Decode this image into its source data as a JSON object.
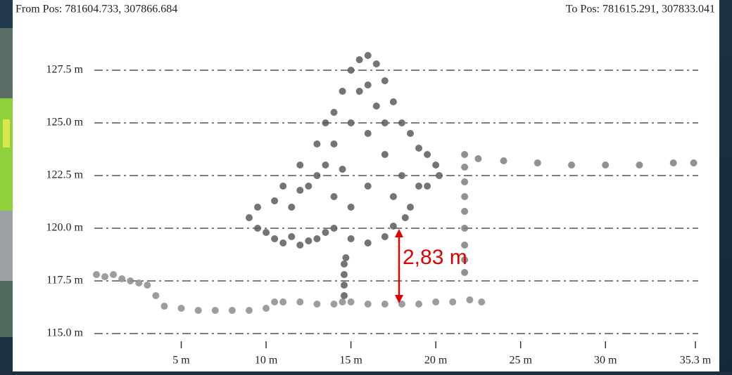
{
  "chart_data": {
    "type": "scatter",
    "from_pos": "From Pos: 781604.733, 307866.684",
    "to_pos": "To Pos: 781615.291, 307833.041",
    "annotation": "2,83 m",
    "xlim": [
      0,
      35.3
    ],
    "ylim": [
      114.1,
      128.5
    ],
    "xticks": [
      {
        "value": 5,
        "label": "5 m"
      },
      {
        "value": 10,
        "label": "10 m"
      },
      {
        "value": 15,
        "label": "15 m"
      },
      {
        "value": 20,
        "label": "20 m"
      },
      {
        "value": 25,
        "label": "25 m"
      },
      {
        "value": 30,
        "label": "30 m"
      },
      {
        "value": 35.3,
        "label": "35.3 m"
      }
    ],
    "yticks": [
      {
        "value": 115.0,
        "label": "115.0 m"
      },
      {
        "value": 117.5,
        "label": "117.5 m"
      },
      {
        "value": 120.0,
        "label": "120.0 m"
      },
      {
        "value": 122.5,
        "label": "122.5 m"
      },
      {
        "value": 125.0,
        "label": "125.0 m"
      },
      {
        "value": 127.5,
        "label": "127.5 m"
      }
    ],
    "grid": true,
    "series": [
      {
        "color": "#8c8c8c",
        "x": [
          0,
          0.5,
          1,
          1.5,
          2,
          2.5,
          3,
          3.5,
          4,
          5,
          6,
          7,
          8,
          9,
          10,
          10.5,
          11,
          12,
          13,
          14,
          14.5,
          15,
          16,
          17,
          18,
          19,
          20,
          21,
          22,
          22.7
        ],
        "values": [
          117.8,
          117.7,
          117.8,
          117.6,
          117.5,
          117.4,
          117.3,
          116.8,
          116.3,
          116.2,
          116.1,
          116.1,
          116.1,
          116.1,
          116.2,
          116.5,
          116.5,
          116.5,
          116.4,
          116.4,
          116.5,
          116.5,
          116.4,
          116.4,
          116.4,
          116.4,
          116.5,
          116.5,
          116.6,
          116.5
        ]
      },
      {
        "color": "#7e7e7e",
        "x": [
          21.7,
          21.7,
          21.7,
          21.7,
          21.7,
          21.7,
          21.7,
          21.7,
          21.7,
          22.5,
          24,
          26,
          28,
          30,
          32,
          34,
          35.2
        ],
        "values": [
          117.9,
          118.5,
          119.2,
          120.0,
          120.8,
          121.5,
          122.2,
          122.9,
          123.5,
          123.3,
          123.2,
          123.1,
          123.0,
          123.0,
          123.0,
          123.1,
          123.1
        ]
      },
      {
        "color": "#5c5c5c",
        "x": [
          14.6,
          14.6,
          14.6,
          14.6,
          14.7,
          9,
          9.5,
          10,
          10.5,
          11,
          11.5,
          12,
          12.5,
          13,
          13.5,
          14,
          15,
          16,
          17,
          17.5,
          9.5,
          10.5,
          11,
          11.5,
          12,
          12.5,
          13,
          13.5,
          14,
          14.5,
          15,
          15.5,
          16,
          16.5,
          17,
          17.5,
          18,
          18.5,
          19,
          19.5,
          20,
          20.2,
          19,
          18,
          17,
          16,
          15,
          14,
          13,
          12,
          15.5,
          16.5,
          17.5,
          15,
          16,
          14,
          18.5,
          19.5,
          13.5,
          17,
          16,
          14.5,
          18.2
        ],
        "values": [
          116.8,
          117.3,
          117.8,
          118.3,
          118.6,
          120.5,
          120.0,
          119.8,
          119.5,
          119.3,
          119.6,
          119.2,
          119.4,
          119.5,
          119.8,
          120.0,
          119.5,
          119.3,
          119.6,
          120.1,
          121.0,
          121.3,
          122.0,
          121.0,
          123.0,
          122.0,
          124.0,
          123.0,
          125.5,
          126.5,
          127.5,
          128.0,
          128.2,
          127.8,
          127.0,
          126.0,
          125.0,
          124.5,
          123.8,
          123.5,
          123.0,
          122.5,
          122.0,
          122.5,
          123.5,
          124.5,
          125.0,
          124.0,
          122.5,
          121.8,
          126.5,
          125.8,
          121.5,
          121.0,
          122.0,
          121.5,
          121.0,
          122.0,
          125.0,
          125.0,
          126.8,
          122.8,
          120.5
        ]
      }
    ]
  }
}
